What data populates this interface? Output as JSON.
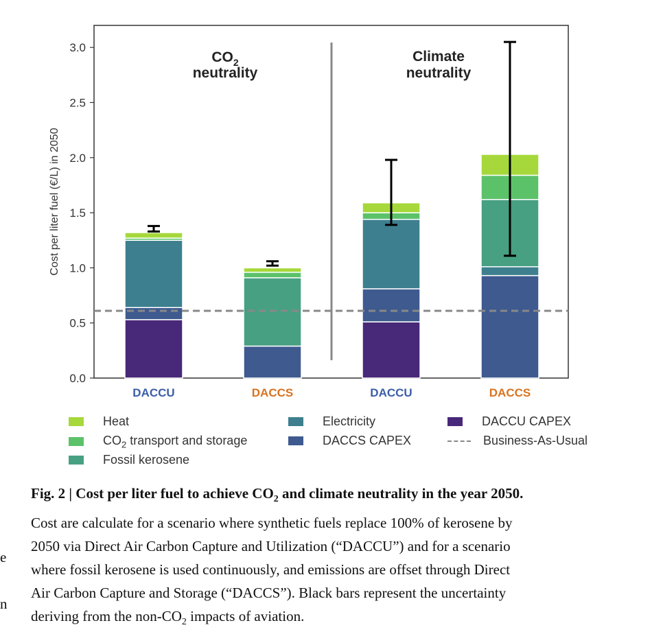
{
  "chart_data": {
    "type": "bar",
    "stacked": true,
    "ylabel": "Cost per liter fuel (€/L) in 2050",
    "ylim": [
      0,
      3.2
    ],
    "yticks": [
      "0.0",
      "0.5",
      "1.0",
      "1.5",
      "2.0",
      "2.5",
      "3.0"
    ],
    "panels": [
      {
        "title_line1": "CO",
        "title_sub": "2",
        "title_line2": "neutrality"
      },
      {
        "title_line1": "Climate",
        "title_line2": "neutrality"
      }
    ],
    "categories": [
      "DACCU",
      "DACCS",
      "DACCU",
      "DACCS"
    ],
    "category_colors": [
      "#3b5ea8",
      "#d9731f",
      "#3b5ea8",
      "#d9731f"
    ],
    "series": [
      {
        "name": "DACCU CAPEX",
        "color": "#482878",
        "values": [
          0.53,
          0,
          0.51,
          0
        ]
      },
      {
        "name": "DACCS CAPEX",
        "color": "#3e5a8f",
        "values": [
          0.11,
          0.29,
          0.3,
          0.93
        ]
      },
      {
        "name": "Electricity",
        "color": "#3d7f8e",
        "values": [
          0.61,
          0,
          0.63,
          0.08
        ]
      },
      {
        "name": "Fossil kerosene",
        "color": "#47a082",
        "values": [
          0,
          0.62,
          0,
          0.61
        ]
      },
      {
        "name": "CO2 transport and storage",
        "color": "#5cc26a",
        "values": [
          0.02,
          0.05,
          0.06,
          0.22
        ]
      },
      {
        "name": "Heat",
        "color": "#a6d83b",
        "values": [
          0.05,
          0.04,
          0.09,
          0.19
        ]
      }
    ],
    "error_bars": [
      {
        "low": 1.33,
        "high": 1.38
      },
      {
        "low": 1.02,
        "high": 1.06
      },
      {
        "low": 1.39,
        "high": 1.98
      },
      {
        "low": 1.11,
        "high": 3.05
      }
    ],
    "baseline": {
      "name": "Business-As-Usual",
      "value": 0.61
    }
  },
  "legend": {
    "heat": "Heat",
    "co2_prefix": "CO",
    "co2_sub": "2",
    "co2_suffix": " transport and storage",
    "fossil": "Fossil kerosene",
    "electricity": "Electricity",
    "daccs_capex": "DACCS CAPEX",
    "daccu_capex": "DACCU CAPEX",
    "bau": "Business-As-Usual"
  },
  "caption": {
    "label": "Fig. 2 | Cost per liter fuel to achieve CO",
    "label_sub": "2",
    "label_rest": " and climate neutrality in the year 2050.",
    "line1": "Cost are calculate for a scenario where synthetic fuels replace 100% of kerosene by",
    "line2": "2050 via Direct Air Carbon Capture and Utilization (“DACCU”) and for a scenario",
    "line3": "where fossil kerosene is used continuously, and emissions are offset through Direct",
    "line4": "Air Carbon Capture and Storage (“DACCS”). Black bars represent the uncertainty",
    "line5_a": "deriving from the non-CO",
    "line5_sub": "2",
    "line5_b": " impacts of aviation."
  },
  "margin_fragments": [
    "e",
    "n"
  ]
}
